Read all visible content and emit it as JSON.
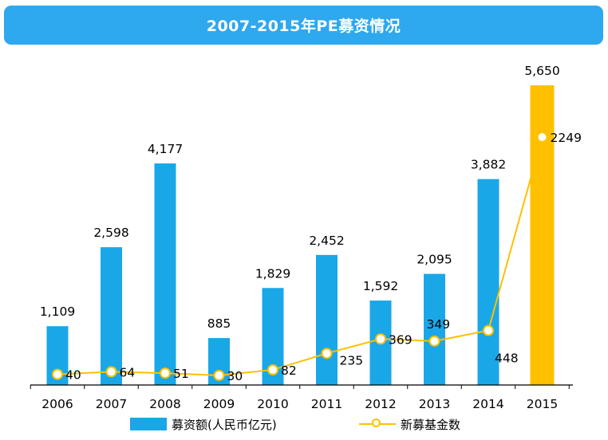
{
  "title": "2007-2015年PE募资情况",
  "colors": {
    "title_bg": "#2ea8ee",
    "bar": "#1aa7e8",
    "bar_highlight": "#ffc000",
    "line": "#ffc000",
    "axis": "#000000"
  },
  "chart_data": {
    "type": "bar",
    "categories": [
      "2006",
      "2007",
      "2008",
      "2009",
      "2010",
      "2011",
      "2012",
      "2013",
      "2014",
      "2015"
    ],
    "series": [
      {
        "name": "募资额(人民币亿元)",
        "type": "bar",
        "values": [
          1109,
          2598,
          4177,
          885,
          1829,
          2452,
          1592,
          2095,
          3882,
          5650
        ],
        "labels": [
          "1,109",
          "2,598",
          "4,177",
          "885",
          "1,829",
          "2,452",
          "1,592",
          "2,095",
          "3,882",
          "5,650"
        ],
        "highlight_index": 9
      },
      {
        "name": "新募基金数",
        "type": "line",
        "values": [
          40,
          64,
          51,
          30,
          82,
          235,
          369,
          349,
          448,
          2249
        ],
        "labels": [
          "40",
          "64",
          "51",
          "30",
          "82",
          "235",
          "369",
          "349",
          "448",
          "2249"
        ]
      }
    ],
    "ylim": [
      0,
      5650
    ],
    "y2lim": [
      0,
      2249
    ],
    "grid": false,
    "legend": "bottom"
  }
}
